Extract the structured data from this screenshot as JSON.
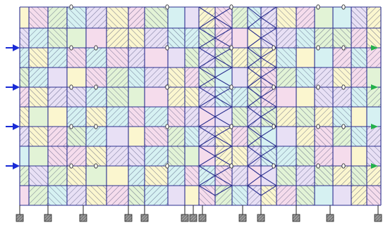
{
  "diagram": {
    "kind": "mesh-grid",
    "colors": {
      "grid_line": "#2b2f8f",
      "hatch": "#3a3f6a",
      "inlet_arrow": "#1a2bd6",
      "outlet_arrow": "#22b04a",
      "support_fill": "#9a9a9a",
      "cell_yellow": "#fbf6cf",
      "cell_cyan": "#d6f1f2",
      "cell_pink": "#f5dcec",
      "cell_lavender": "#e8e0f5",
      "cell_green": "#e2f3d6"
    },
    "icons": {
      "inlet": "arrow-right-icon",
      "outlet": "arrow-right-icon",
      "node": "ellipse-node-icon",
      "support": "hatched-support-icon"
    }
  }
}
